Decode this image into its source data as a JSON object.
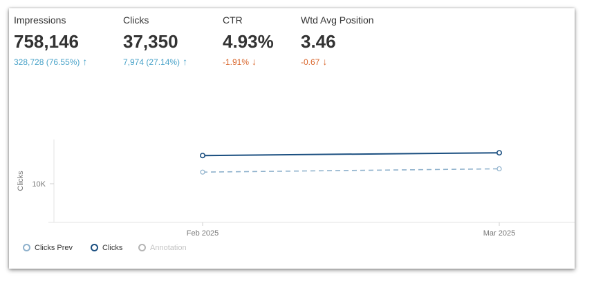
{
  "metrics": [
    {
      "label": "Impressions",
      "value": "758,146",
      "delta": "328,728 (76.55%)",
      "direction": "up",
      "arrow": "↑"
    },
    {
      "label": "Clicks",
      "value": "37,350",
      "delta": "7,974 (27.14%)",
      "direction": "up",
      "arrow": "↑"
    },
    {
      "label": "CTR",
      "value": "4.93%",
      "delta": "-1.91%",
      "direction": "down",
      "arrow": "↓"
    },
    {
      "label": "Wtd Avg Position",
      "value": "3.46",
      "delta": "-0.67",
      "direction": "down",
      "arrow": "↓"
    }
  ],
  "chart_data": {
    "type": "line",
    "categories": [
      "Feb 2025",
      "Mar 2025"
    ],
    "ylabel": "Clicks",
    "ytick_labels": [
      "10K"
    ],
    "ytick_values": [
      10000
    ],
    "ylim": [
      3000,
      18000
    ],
    "series": [
      {
        "name": "Clicks Prev",
        "values": [
          12100,
          12700
        ],
        "color": "#8eb1cc",
        "dashed": true
      },
      {
        "name": "Clicks",
        "values": [
          15100,
          15600
        ],
        "color": "#1b4f80",
        "dashed": false
      }
    ],
    "legend": [
      {
        "name": "Clicks Prev",
        "color": "#8eb1cc",
        "muted": false
      },
      {
        "name": "Clicks",
        "color": "#1b4f80",
        "muted": false
      },
      {
        "name": "Annotation",
        "color": "#b5b5b5",
        "muted": true
      }
    ],
    "legend_position": "bottom-left"
  }
}
